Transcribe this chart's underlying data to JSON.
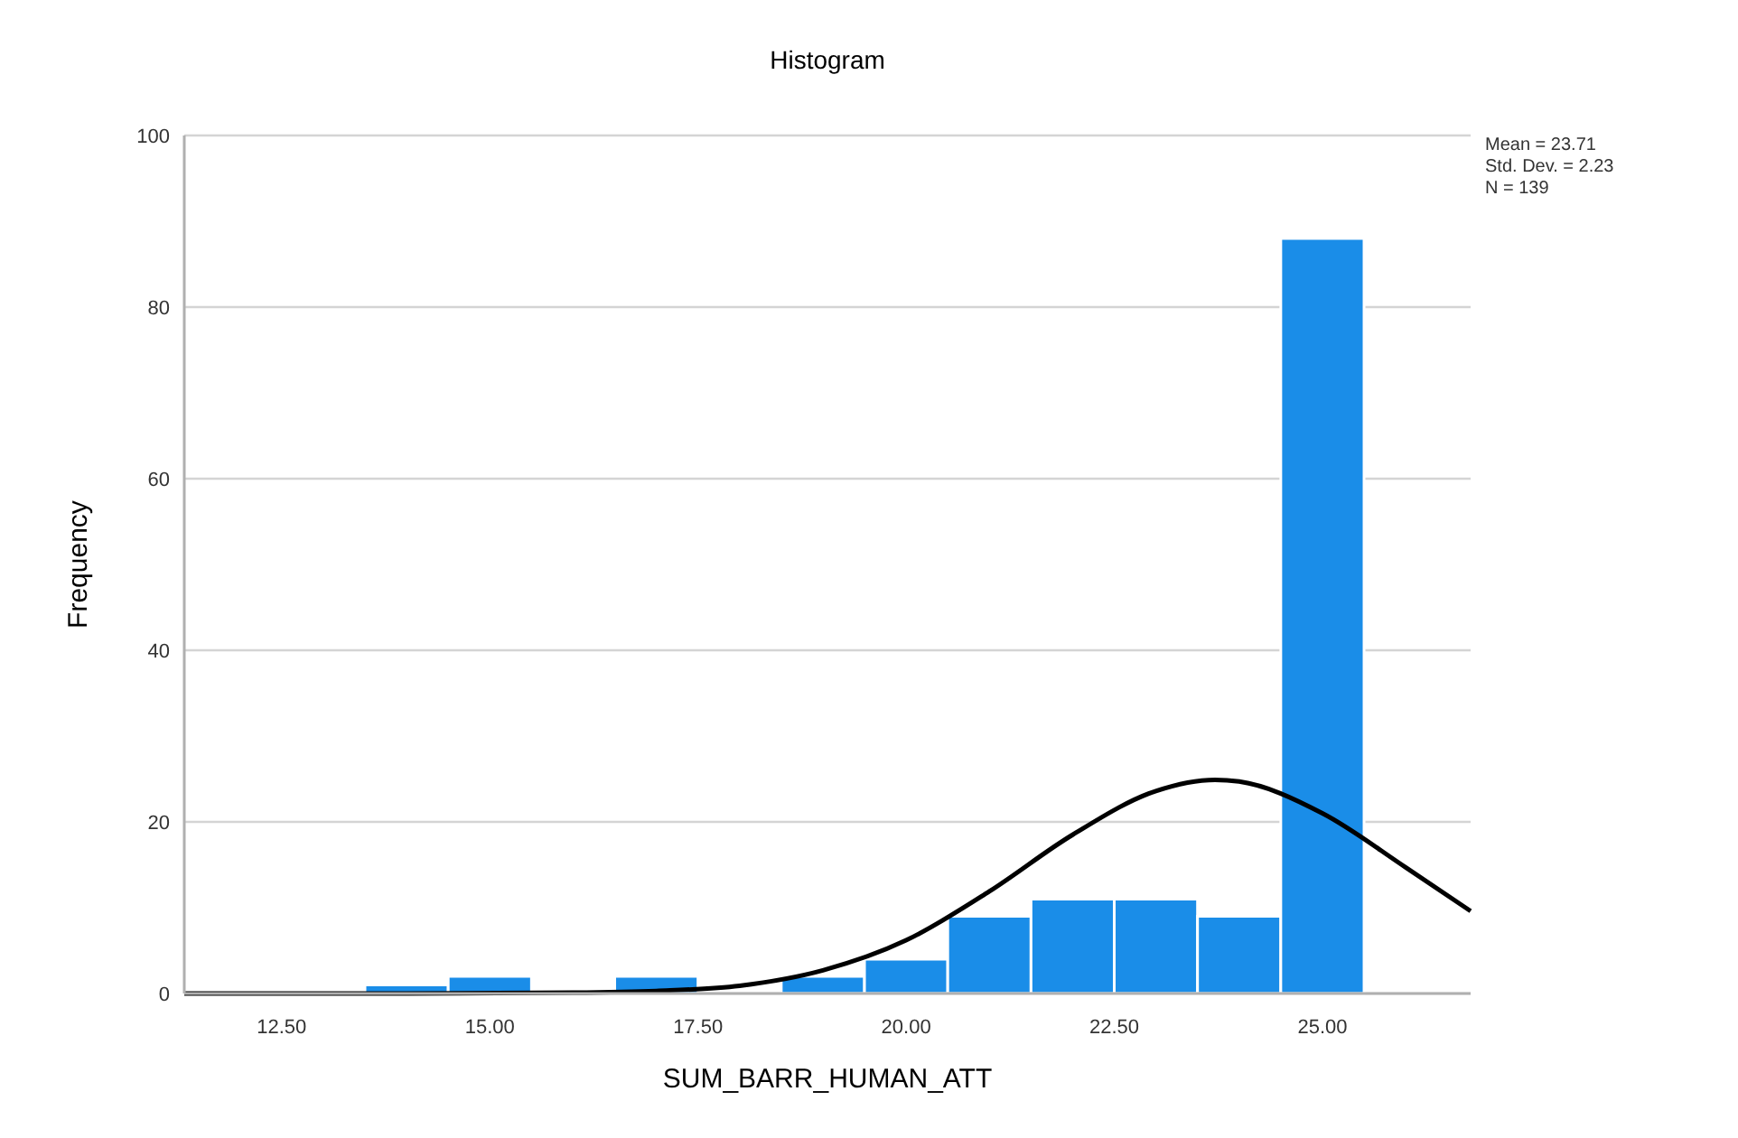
{
  "chart_data": {
    "type": "histogram",
    "title": "Histogram",
    "xlabel": "SUM_BARR_HUMAN_ATT",
    "ylabel": "Frequency",
    "bins": [
      13.5,
      14.5,
      15.5,
      16.5,
      17.5,
      18.5,
      19.5,
      20.5,
      21.5,
      22.5,
      23.5,
      24.5,
      25.5
    ],
    "values": [
      1,
      2,
      0,
      2,
      0,
      2,
      4,
      9,
      11,
      11,
      9,
      88
    ],
    "color": "#1a8de8",
    "series": [
      {
        "type": "line",
        "color": "#000000",
        "x": [
          11.33,
          14,
          16,
          17,
          18,
          19,
          20,
          21,
          22,
          23,
          23.71,
          24,
          25,
          26,
          26.78
        ],
        "values": [
          0,
          0,
          0.1,
          0.3,
          0.9,
          2.7,
          6.2,
          11.9,
          18.5,
          23.6,
          24.9,
          24.7,
          21,
          14.7,
          9.6
        ]
      }
    ],
    "xlim": [
      11.33,
      26.78
    ],
    "xticks": [
      {
        "value": 12.5,
        "label": "12.50"
      },
      {
        "value": 15,
        "label": "15.00"
      },
      {
        "value": 17.5,
        "label": "17.50"
      },
      {
        "value": 20,
        "label": "20.00"
      },
      {
        "value": 22.5,
        "label": "22.50"
      },
      {
        "value": 25,
        "label": "25.00"
      }
    ],
    "ylim": [
      0,
      100
    ],
    "yticks": [
      0,
      20,
      40,
      60,
      80,
      100
    ],
    "grid": "y",
    "annotations": [
      "Mean = 23.71",
      "Std. Dev. = 2.23",
      "N = 139"
    ]
  }
}
